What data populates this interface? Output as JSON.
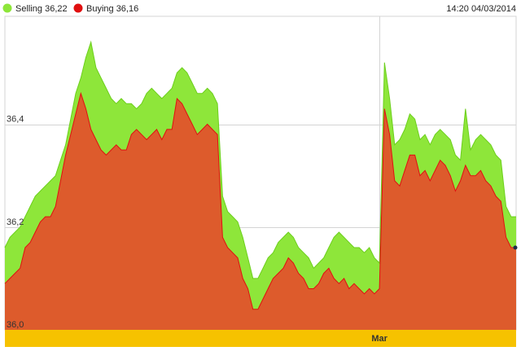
{
  "legend": {
    "selling_label": "Selling 36,22",
    "buying_label": "Buying 36,16",
    "timestamp": "14:20 04/03/2014"
  },
  "colors": {
    "selling": "#8ee63a",
    "selling_stroke": "#6ccf1c",
    "buying": "#dd5b2c",
    "buying_stroke": "#e01010",
    "axis_band": "#f6c200",
    "grid": "#d4d4d4",
    "marker": "#1c2f4a"
  },
  "chart_data": {
    "type": "area",
    "ylim": [
      36.0,
      36.61
    ],
    "yticks": [
      {
        "value": 36.0,
        "label": "36,0"
      },
      {
        "value": 36.2,
        "label": "36,2"
      },
      {
        "value": 36.4,
        "label": "36,4"
      }
    ],
    "x_markers": [
      {
        "index": 74,
        "label": "Mar"
      }
    ],
    "grid": true,
    "legend_position": "top-left",
    "series": [
      {
        "name": "Selling",
        "values": [
          36.16,
          36.18,
          36.19,
          36.2,
          36.22,
          36.24,
          36.26,
          36.27,
          36.28,
          36.29,
          36.3,
          36.33,
          36.36,
          36.41,
          36.46,
          36.49,
          36.53,
          36.56,
          36.51,
          36.49,
          36.47,
          36.45,
          36.44,
          36.45,
          36.44,
          36.44,
          36.43,
          36.44,
          36.46,
          36.47,
          36.46,
          36.45,
          36.46,
          36.47,
          36.5,
          36.51,
          36.5,
          36.48,
          36.46,
          36.46,
          36.47,
          36.46,
          36.44,
          36.26,
          36.23,
          36.22,
          36.21,
          36.18,
          36.14,
          36.1,
          36.1,
          36.12,
          36.14,
          36.15,
          36.17,
          36.18,
          36.19,
          36.18,
          36.16,
          36.15,
          36.14,
          36.12,
          36.13,
          36.14,
          36.16,
          36.18,
          36.19,
          36.18,
          36.17,
          36.16,
          36.16,
          36.15,
          36.16,
          36.14,
          36.13,
          36.52,
          36.45,
          36.36,
          36.37,
          36.39,
          36.42,
          36.41,
          36.37,
          36.38,
          36.36,
          36.38,
          36.39,
          36.38,
          36.37,
          36.34,
          36.33,
          36.43,
          36.35,
          36.37,
          36.38,
          36.37,
          36.36,
          36.34,
          36.33,
          36.24,
          36.22,
          36.22
        ]
      },
      {
        "name": "Buying",
        "values": [
          36.09,
          36.1,
          36.11,
          36.12,
          36.16,
          36.17,
          36.19,
          36.21,
          36.22,
          36.22,
          36.24,
          36.29,
          36.34,
          36.38,
          36.42,
          36.46,
          36.43,
          36.39,
          36.37,
          36.35,
          36.34,
          36.35,
          36.36,
          36.35,
          36.35,
          36.38,
          36.39,
          36.38,
          36.37,
          36.38,
          36.39,
          36.37,
          36.39,
          36.39,
          36.45,
          36.44,
          36.42,
          36.4,
          36.38,
          36.39,
          36.4,
          36.39,
          36.38,
          36.18,
          36.16,
          36.15,
          36.14,
          36.1,
          36.08,
          36.04,
          36.04,
          36.06,
          36.08,
          36.1,
          36.11,
          36.12,
          36.14,
          36.13,
          36.11,
          36.1,
          36.08,
          36.08,
          36.09,
          36.11,
          36.12,
          36.1,
          36.09,
          36.1,
          36.08,
          36.09,
          36.08,
          36.07,
          36.08,
          36.07,
          36.08,
          36.43,
          36.38,
          36.29,
          36.28,
          36.31,
          36.34,
          36.34,
          36.3,
          36.31,
          36.29,
          36.31,
          36.33,
          36.32,
          36.3,
          36.27,
          36.29,
          36.32,
          36.3,
          36.3,
          36.31,
          36.29,
          36.28,
          36.26,
          36.25,
          36.18,
          36.16,
          36.16
        ]
      }
    ]
  }
}
